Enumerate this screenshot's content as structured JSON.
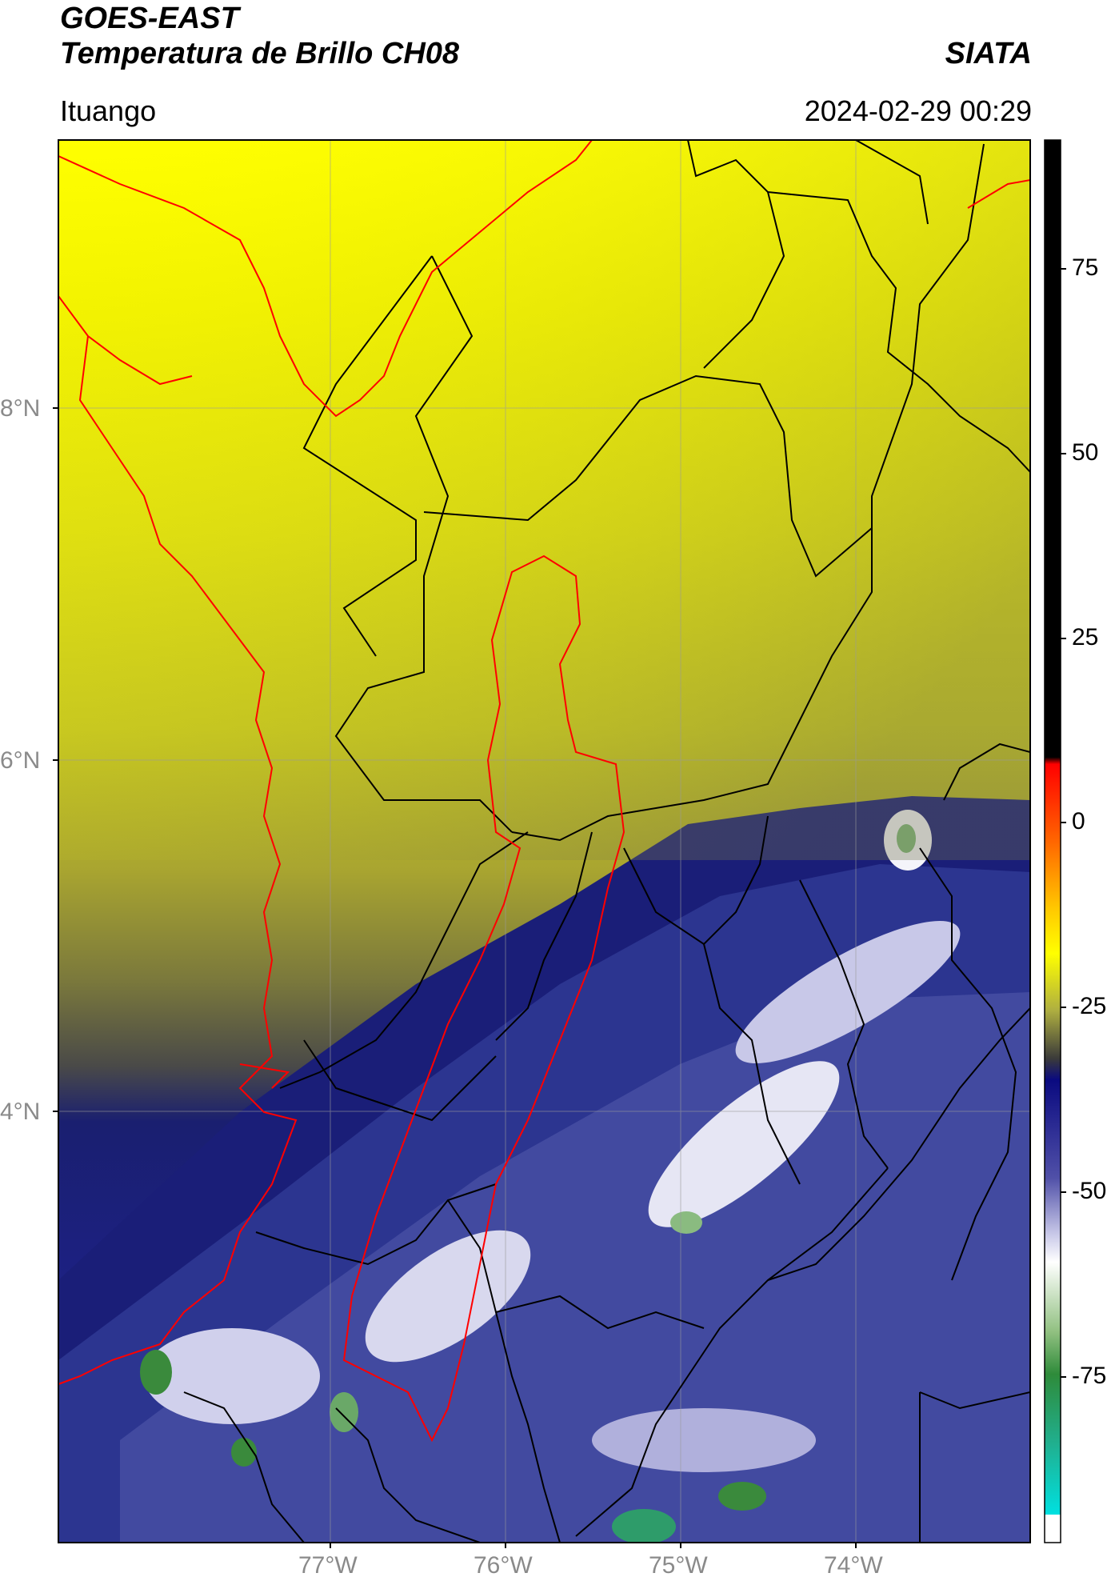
{
  "header": {
    "satellite": "GOES-EAST",
    "product": "Temperatura de Brillo CH08",
    "brand": "SIATA",
    "location": "Ituango",
    "timestamp": "2024-02-29 00:29"
  },
  "map": {
    "lat_labels": [
      "8°N",
      "6°N",
      "4°N"
    ],
    "lon_labels": [
      "77°W",
      "76°W",
      "75°W",
      "74°W"
    ],
    "basin_outline_color": "#ff0000",
    "coast_outline_color": "#ff0000",
    "boundary_color": "#000000"
  },
  "colorbar": {
    "ticks": [
      "75",
      "50",
      "25",
      "0",
      "-25",
      "-50",
      "-75"
    ],
    "colors": [
      "#000000",
      "#ff0000",
      "#ff9900",
      "#ffff00",
      "#4a4a3a",
      "#14146e",
      "#5a5aaa",
      "#f0f0f8",
      "#2e8b3a",
      "#00e0d0",
      "#ffffff"
    ]
  }
}
